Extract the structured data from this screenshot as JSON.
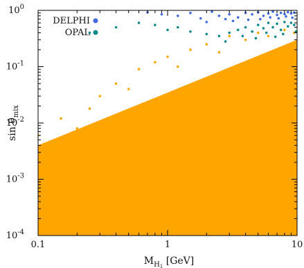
{
  "chart_data": {
    "type": "scatter",
    "title": "",
    "xlabel": {
      "base": "M",
      "sub": "H",
      "subsub": "1",
      "unit": " [GeV]"
    },
    "ylabel": {
      "text": "sin θ",
      "sub": "mix"
    },
    "x_scale": "log",
    "y_scale": "log",
    "xlim": [
      0.1,
      10
    ],
    "ylim": [
      0.0001,
      1
    ],
    "x_ticks": [
      {
        "value": 0.1,
        "label": "0.1"
      },
      {
        "value": 1,
        "label": "1"
      },
      {
        "value": 10,
        "label": "10"
      }
    ],
    "y_ticks": [
      {
        "value": 0.0001,
        "mant": "10",
        "exp": "-4"
      },
      {
        "value": 0.001,
        "mant": "10",
        "exp": "-3"
      },
      {
        "value": 0.01,
        "mant": "10",
        "exp": "-2"
      },
      {
        "value": 0.1,
        "mant": "10",
        "exp": "-1"
      },
      {
        "value": 1,
        "mant": "10",
        "exp": "0"
      }
    ],
    "grid": false,
    "legend_position": "top-left",
    "series": [
      {
        "name": "DELPHI",
        "color": "#4169e1",
        "points": [
          [
            4.0,
            0.9
          ],
          [
            4.5,
            0.85
          ],
          [
            5.0,
            0.92
          ],
          [
            5.5,
            0.8
          ],
          [
            6.0,
            0.88
          ],
          [
            6.5,
            0.95
          ],
          [
            7.0,
            0.83
          ],
          [
            7.5,
            0.9
          ],
          [
            8.0,
            0.86
          ],
          [
            8.5,
            0.93
          ],
          [
            9.0,
            0.88
          ],
          [
            9.5,
            0.91
          ],
          [
            3.5,
            0.75
          ],
          [
            3.0,
            0.85
          ],
          [
            2.5,
            0.8
          ],
          [
            2.2,
            0.95
          ],
          [
            2.8,
            0.7
          ],
          [
            1.5,
            0.9
          ],
          [
            1.2,
            0.8
          ],
          [
            1.8,
            0.72
          ],
          [
            5.2,
            0.7
          ],
          [
            6.2,
            0.75
          ],
          [
            7.2,
            0.72
          ],
          [
            8.2,
            0.78
          ],
          [
            9.2,
            0.74
          ],
          [
            4.2,
            0.68
          ],
          [
            3.2,
            0.65
          ],
          [
            0.9,
            0.85
          ],
          [
            0.7,
            0.92
          ],
          [
            2.0,
            0.62
          ]
        ]
      },
      {
        "name": "OPAL",
        "color": "#0e8a8a",
        "points": [
          [
            3.0,
            0.4
          ],
          [
            3.5,
            0.45
          ],
          [
            4.0,
            0.5
          ],
          [
            4.5,
            0.42
          ],
          [
            5.0,
            0.55
          ],
          [
            5.5,
            0.48
          ],
          [
            6.0,
            0.6
          ],
          [
            6.5,
            0.5
          ],
          [
            7.0,
            0.58
          ],
          [
            7.5,
            0.45
          ],
          [
            8.0,
            0.62
          ],
          [
            8.5,
            0.52
          ],
          [
            9.0,
            0.6
          ],
          [
            9.5,
            0.55
          ],
          [
            2.5,
            0.35
          ],
          [
            2.0,
            0.38
          ],
          [
            1.5,
            0.42
          ],
          [
            1.2,
            0.5
          ],
          [
            1.0,
            0.45
          ],
          [
            0.8,
            0.55
          ],
          [
            0.6,
            0.6
          ],
          [
            0.4,
            0.5
          ],
          [
            0.25,
            0.4
          ],
          [
            3.8,
            0.35
          ],
          [
            5.8,
            0.4
          ],
          [
            7.8,
            0.38
          ],
          [
            9.8,
            0.42
          ],
          [
            2.8,
            0.28
          ],
          [
            4.8,
            0.32
          ],
          [
            6.8,
            0.34
          ]
        ]
      },
      {
        "name": "",
        "color": "#f5a800",
        "points": [
          [
            0.1,
            0.006
          ],
          [
            0.12,
            0.004
          ],
          [
            0.15,
            0.012
          ],
          [
            0.2,
            0.008
          ],
          [
            0.25,
            0.018
          ],
          [
            0.3,
            0.03
          ],
          [
            0.4,
            0.05
          ],
          [
            0.5,
            0.04
          ],
          [
            0.6,
            0.09
          ],
          [
            0.8,
            0.12
          ],
          [
            1.0,
            0.15
          ],
          [
            1.2,
            0.1
          ],
          [
            1.5,
            0.2
          ],
          [
            2.0,
            0.25
          ],
          [
            2.5,
            0.18
          ],
          [
            3.0,
            0.35
          ],
          [
            4.0,
            0.3
          ],
          [
            5.0,
            0.4
          ],
          [
            6.0,
            0.35
          ],
          [
            8.0,
            0.45
          ],
          [
            9.5,
            0.4
          ]
        ]
      }
    ],
    "region": {
      "color": "#ffa500",
      "upper_boundary": [
        [
          0.1,
          0.004
        ],
        [
          10,
          0.3
        ]
      ]
    }
  }
}
